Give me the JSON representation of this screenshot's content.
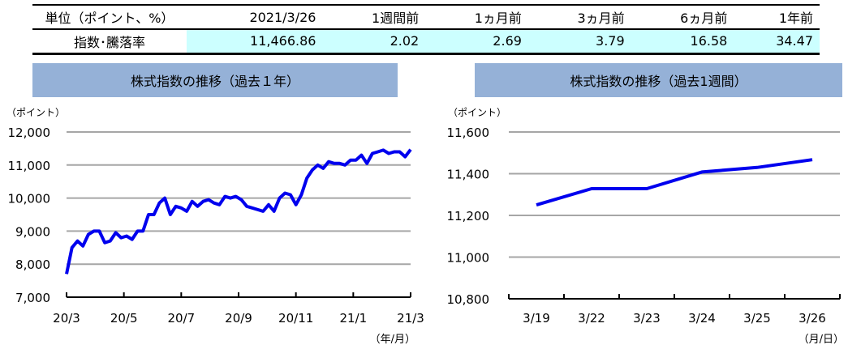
{
  "table": {
    "headers": [
      "単位（ポイント、%）",
      "2021/3/26",
      "1週間前",
      "1ヵ月前",
      "3ヵ月前",
      "6ヵ月前",
      "1年前"
    ],
    "row": [
      "指数･騰落率",
      "11,466.86",
      "2.02",
      "2.69",
      "3.79",
      "16.58",
      "34.47"
    ]
  },
  "colors": {
    "line": "#0000ee",
    "title_bg": "#95b1d7",
    "highlight": "#ccffff",
    "grid": "#a6a6a6"
  },
  "chart_data": [
    {
      "type": "line",
      "title": "株式指数の推移（過去１年）",
      "ylabel": "（ポイント）",
      "xlabel": "（年/月）",
      "ylim": [
        7000,
        12000
      ],
      "yticks": [
        "7,000",
        "8,000",
        "9,000",
        "10,000",
        "11,000",
        "12,000"
      ],
      "xticks": [
        "20/3",
        "20/5",
        "20/7",
        "20/9",
        "20/11",
        "21/1",
        "21/3"
      ],
      "grid": true,
      "values": [
        7700,
        8500,
        8700,
        8550,
        8900,
        9000,
        9000,
        8650,
        8700,
        8950,
        8800,
        8850,
        8750,
        9000,
        9000,
        9500,
        9500,
        9850,
        10000,
        9500,
        9750,
        9700,
        9600,
        9900,
        9750,
        9900,
        9950,
        9850,
        9800,
        10050,
        10000,
        10050,
        9950,
        9750,
        9700,
        9650,
        9600,
        9800,
        9600,
        10000,
        10150,
        10100,
        9800,
        10100,
        10600,
        10850,
        11000,
        10900,
        11100,
        11050,
        11050,
        11000,
        11150,
        11150,
        11300,
        11050,
        11350,
        11400,
        11450,
        11350,
        11400,
        11400,
        11250,
        11467
      ]
    },
    {
      "type": "line",
      "title": "株式指数の推移（過去1週間）",
      "ylabel": "（ポイント）",
      "xlabel": "（月/日）",
      "ylim": [
        10800,
        11600
      ],
      "yticks": [
        "10,800",
        "11,000",
        "11,200",
        "11,400",
        "11,600"
      ],
      "grid": true,
      "categories": [
        "3/19",
        "3/22",
        "3/23",
        "3/24",
        "3/25",
        "3/26"
      ],
      "values": [
        11250,
        11328,
        11328,
        11408,
        11430,
        11467
      ]
    }
  ]
}
